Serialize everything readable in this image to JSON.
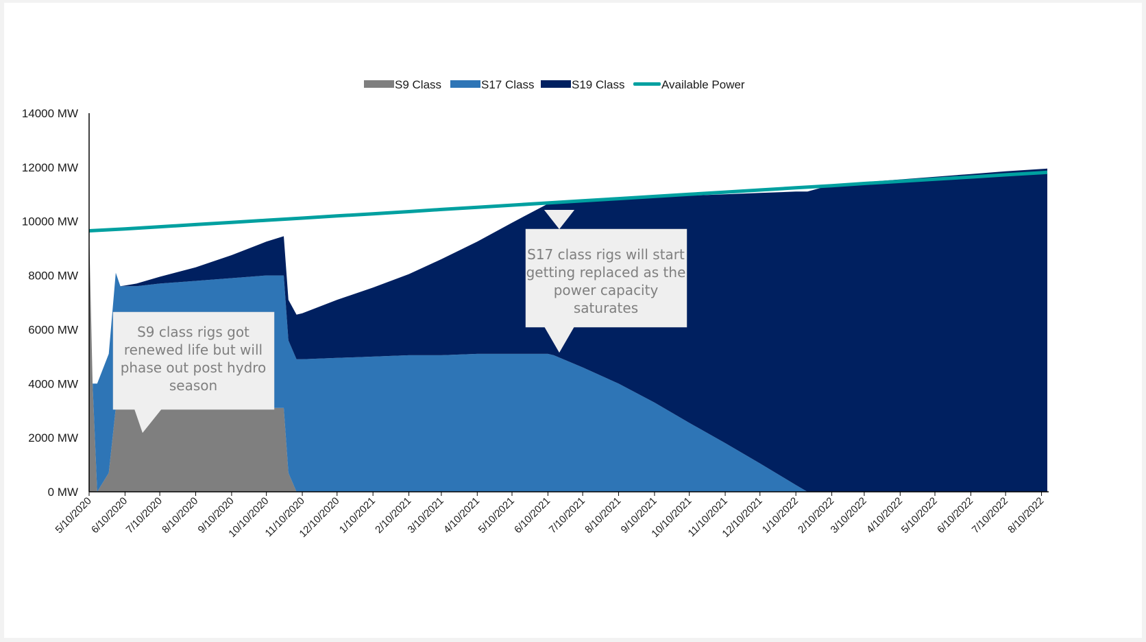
{
  "chart_data": {
    "type": "area",
    "title": "",
    "xlabel": "",
    "ylabel": "",
    "ylim": [
      0,
      14000
    ],
    "y_ticks": [
      "0 MW",
      "2000 MW",
      "4000 MW",
      "6000 MW",
      "8000 MW",
      "10000 MW",
      "12000 MW",
      "14000 MW"
    ],
    "x_ticks": [
      "5/10/2020",
      "6/10/2020",
      "7/10/2020",
      "8/10/2020",
      "9/10/2020",
      "10/10/2020",
      "11/10/2020",
      "12/10/2020",
      "1/10/2021",
      "2/10/2021",
      "3/10/2021",
      "4/10/2021",
      "5/10/2021",
      "6/10/2021",
      "7/10/2021",
      "8/10/2021",
      "9/10/2021",
      "10/10/2021",
      "11/10/2021",
      "12/10/2021",
      "1/10/2022",
      "2/10/2022",
      "3/10/2022",
      "4/10/2022",
      "5/10/2022",
      "6/10/2022",
      "7/10/2022",
      "8/10/2022"
    ],
    "legend_position": "top-center",
    "stacked": true,
    "series": [
      {
        "name": "S9 Class",
        "color": "#7f7f7f",
        "kind": "area",
        "points": [
          [
            "5/10/2020",
            9700
          ],
          [
            "5/13/2020",
            4000
          ],
          [
            "5/17/2020",
            0
          ],
          [
            "5/27/2020",
            700
          ],
          [
            "6/2/2020",
            3100
          ],
          [
            "10/25/2020",
            3100
          ],
          [
            "10/29/2020",
            700
          ],
          [
            "11/5/2020",
            0
          ],
          [
            "8/15/2022",
            0
          ]
        ]
      },
      {
        "name": "S17 Class",
        "color": "#2e75b6",
        "kind": "area",
        "points": [
          [
            "5/10/2020",
            0
          ],
          [
            "5/13/2020",
            0
          ],
          [
            "5/17/2020",
            4000
          ],
          [
            "5/27/2020",
            4400
          ],
          [
            "6/2/2020",
            5000
          ],
          [
            "6/6/2020",
            4500
          ],
          [
            "6/20/2020",
            4500
          ],
          [
            "7/10/2020",
            4600
          ],
          [
            "8/10/2020",
            4700
          ],
          [
            "9/10/2020",
            4800
          ],
          [
            "10/10/2020",
            4900
          ],
          [
            "10/25/2020",
            4900
          ],
          [
            "10/29/2020",
            4900
          ],
          [
            "11/10/2020",
            4900
          ],
          [
            "12/10/2020",
            4950
          ],
          [
            "1/10/2021",
            5000
          ],
          [
            "2/10/2021",
            5050
          ],
          [
            "3/10/2021",
            5050
          ],
          [
            "4/10/2021",
            5100
          ],
          [
            "5/10/2021",
            5100
          ],
          [
            "6/10/2021",
            5100
          ],
          [
            "6/15/2021",
            5050
          ],
          [
            "7/10/2021",
            4600
          ],
          [
            "8/10/2021",
            4000
          ],
          [
            "9/10/2021",
            3300
          ],
          [
            "10/10/2021",
            2550
          ],
          [
            "11/10/2021",
            1800
          ],
          [
            "12/10/2021",
            1050
          ],
          [
            "1/10/2022",
            250
          ],
          [
            "1/20/2022",
            0
          ],
          [
            "8/15/2022",
            0
          ]
        ]
      },
      {
        "name": "S19 Class",
        "color": "#002060",
        "kind": "area",
        "points": [
          [
            "5/10/2020",
            0
          ],
          [
            "6/2/2020",
            0
          ],
          [
            "6/6/2020",
            0
          ],
          [
            "6/20/2020",
            100
          ],
          [
            "7/10/2020",
            250
          ],
          [
            "8/10/2020",
            500
          ],
          [
            "9/10/2020",
            850
          ],
          [
            "10/10/2020",
            1250
          ],
          [
            "10/25/2020",
            1450
          ],
          [
            "10/29/2020",
            1500
          ],
          [
            "11/5/2020",
            1650
          ],
          [
            "11/10/2020",
            1700
          ],
          [
            "12/10/2020",
            2150
          ],
          [
            "1/10/2021",
            2550
          ],
          [
            "2/10/2021",
            3000
          ],
          [
            "3/10/2021",
            3550
          ],
          [
            "4/10/2021",
            4150
          ],
          [
            "5/10/2021",
            4850
          ],
          [
            "6/10/2021",
            5550
          ],
          [
            "6/15/2021",
            5620
          ],
          [
            "7/10/2021",
            6150
          ],
          [
            "8/10/2021",
            6850
          ],
          [
            "9/10/2021",
            7600
          ],
          [
            "10/10/2021",
            8400
          ],
          [
            "11/10/2021",
            9200
          ],
          [
            "12/10/2021",
            10000
          ],
          [
            "1/10/2022",
            10850
          ],
          [
            "1/20/2022",
            11100
          ],
          [
            "2/10/2022",
            11350
          ],
          [
            "3/10/2022",
            11450
          ],
          [
            "4/10/2022",
            11550
          ],
          [
            "5/10/2022",
            11650
          ],
          [
            "6/10/2022",
            11750
          ],
          [
            "7/10/2022",
            11850
          ],
          [
            "8/15/2022",
            11950
          ]
        ]
      },
      {
        "name": "Available Power",
        "color": "#00a0a0",
        "kind": "line",
        "points": [
          [
            "5/10/2020",
            9650
          ],
          [
            "6/10/2020",
            9720
          ],
          [
            "7/10/2020",
            9800
          ],
          [
            "8/10/2020",
            9880
          ],
          [
            "9/10/2020",
            9960
          ],
          [
            "10/10/2020",
            10040
          ],
          [
            "11/10/2020",
            10120
          ],
          [
            "12/10/2020",
            10200
          ],
          [
            "1/10/2021",
            10280
          ],
          [
            "2/10/2021",
            10360
          ],
          [
            "3/10/2021",
            10440
          ],
          [
            "4/10/2021",
            10520
          ],
          [
            "5/10/2021",
            10600
          ],
          [
            "6/10/2021",
            10680
          ],
          [
            "7/10/2021",
            10760
          ],
          [
            "8/10/2021",
            10840
          ],
          [
            "9/10/2021",
            10920
          ],
          [
            "10/10/2021",
            11000
          ],
          [
            "11/10/2021",
            11080
          ],
          [
            "12/10/2021",
            11160
          ],
          [
            "1/10/2022",
            11240
          ],
          [
            "2/10/2022",
            11320
          ],
          [
            "3/10/2022",
            11400
          ],
          [
            "4/10/2022",
            11480
          ],
          [
            "5/10/2022",
            11560
          ],
          [
            "6/10/2022",
            11640
          ],
          [
            "7/10/2022",
            11720
          ],
          [
            "8/15/2022",
            11810
          ]
        ]
      }
    ],
    "annotations": [
      {
        "text_lines": [
          "S9 class rigs got",
          "renewed life but will",
          "phase out post hydro",
          "season"
        ]
      },
      {
        "text_lines": [
          "S17 class rigs will start",
          "getting replaced as the",
          "power capacity",
          "saturates"
        ]
      }
    ]
  }
}
